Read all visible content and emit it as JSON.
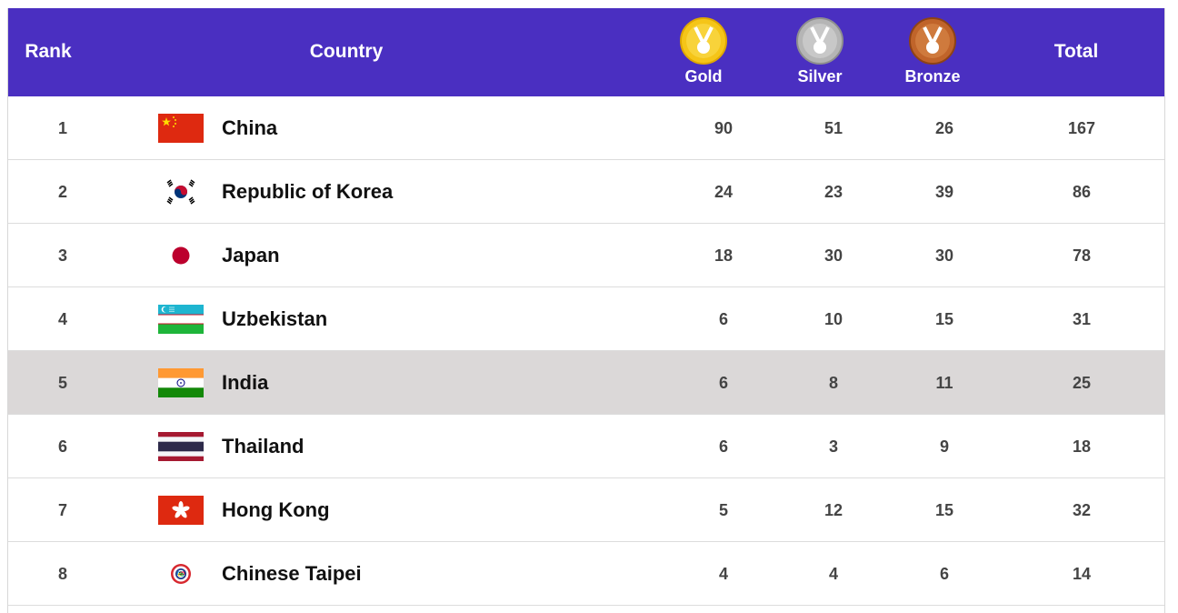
{
  "header": {
    "rank": "Rank",
    "country": "Country",
    "gold": "Gold",
    "silver": "Silver",
    "bronze": "Bronze",
    "total": "Total",
    "colors": {
      "background": "#4a2fc1",
      "gold": "#f2b705",
      "silver": "#a8a8a8",
      "bronze": "#b5571e"
    }
  },
  "rows": [
    {
      "rank": "1",
      "country": "China",
      "flag": "china-flag",
      "gold": "90",
      "silver": "51",
      "bronze": "26",
      "total": "167"
    },
    {
      "rank": "2",
      "country": "Republic of Korea",
      "flag": "korea-flag",
      "gold": "24",
      "silver": "23",
      "bronze": "39",
      "total": "86"
    },
    {
      "rank": "3",
      "country": "Japan",
      "flag": "japan-flag",
      "gold": "18",
      "silver": "30",
      "bronze": "30",
      "total": "78"
    },
    {
      "rank": "4",
      "country": "Uzbekistan",
      "flag": "uzbekistan-flag",
      "gold": "6",
      "silver": "10",
      "bronze": "15",
      "total": "31"
    },
    {
      "rank": "5",
      "country": "India",
      "flag": "india-flag",
      "gold": "6",
      "silver": "8",
      "bronze": "11",
      "total": "25"
    },
    {
      "rank": "6",
      "country": "Thailand",
      "flag": "thailand-flag",
      "gold": "6",
      "silver": "3",
      "bronze": "9",
      "total": "18"
    },
    {
      "rank": "7",
      "country": "Hong Kong",
      "flag": "hong-kong-flag",
      "gold": "5",
      "silver": "12",
      "bronze": "15",
      "total": "32"
    },
    {
      "rank": "8",
      "country": "Chinese Taipei",
      "flag": "chinese-taipei-flag",
      "gold": "4",
      "silver": "4",
      "bronze": "6",
      "total": "14"
    }
  ]
}
